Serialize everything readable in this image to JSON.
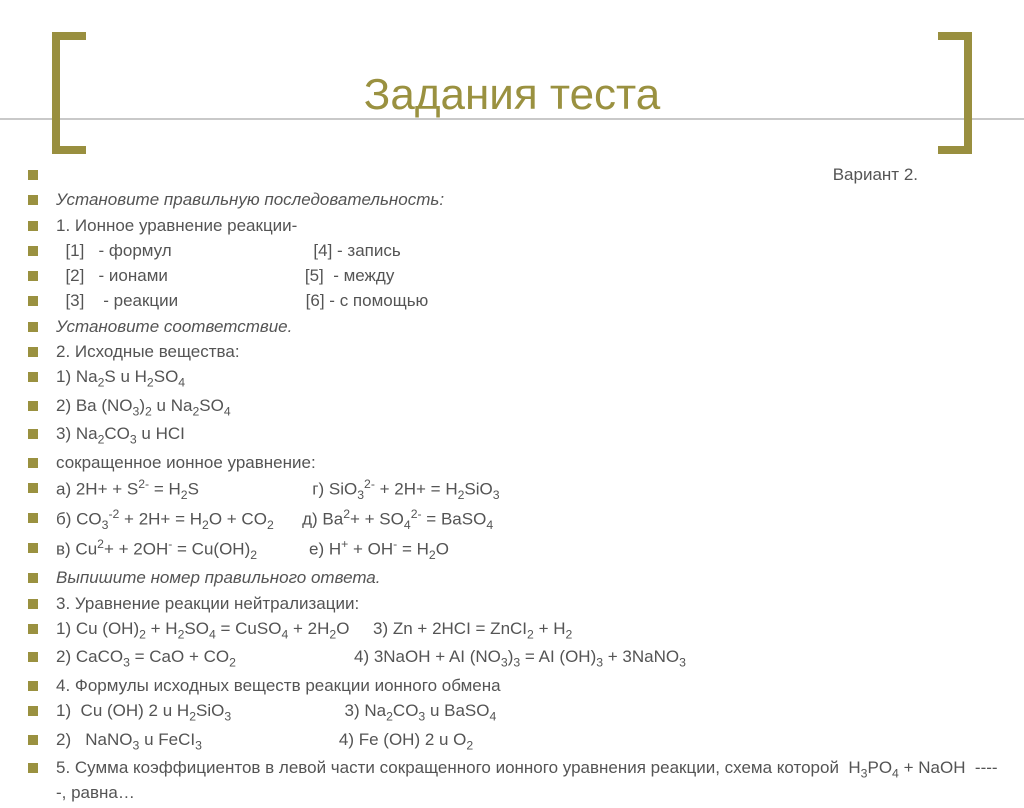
{
  "title": "Задания теста",
  "colors": {
    "accent": "#9a9140",
    "text": "#545454",
    "rule": "#c9c9c9",
    "background": "#ffffff"
  },
  "typography": {
    "title_fontsize": 44,
    "body_fontsize": 17,
    "font_family": "Arial"
  },
  "lines": [
    {
      "html": "Вариант 2.",
      "right": true
    },
    {
      "html": "Установите правильную последовательность:",
      "italic": true
    },
    {
      "html": "1. Ионное уравнение реакции-"
    },
    {
      "html": "&nbsp;&nbsp;[1]&nbsp;&nbsp;&nbsp;- формул&nbsp;&nbsp;&nbsp;&nbsp;&nbsp;&nbsp;&nbsp;&nbsp;&nbsp;&nbsp;&nbsp;&nbsp;&nbsp;&nbsp;&nbsp;&nbsp;&nbsp;&nbsp;&nbsp;&nbsp;&nbsp;&nbsp;&nbsp;&nbsp;&nbsp;&nbsp;&nbsp;&nbsp;&nbsp;&nbsp;[4] - запись"
    },
    {
      "html": "&nbsp;&nbsp;[2]&nbsp;&nbsp;&nbsp;- ионами&nbsp;&nbsp;&nbsp;&nbsp;&nbsp;&nbsp;&nbsp;&nbsp;&nbsp;&nbsp;&nbsp;&nbsp;&nbsp;&nbsp;&nbsp;&nbsp;&nbsp;&nbsp;&nbsp;&nbsp;&nbsp;&nbsp;&nbsp;&nbsp;&nbsp;&nbsp;&nbsp;&nbsp;&nbsp;[5]&nbsp;&nbsp;- между"
    },
    {
      "html": "&nbsp;&nbsp;[3]&nbsp;&nbsp;&nbsp;&nbsp;- реакции&nbsp;&nbsp;&nbsp;&nbsp;&nbsp;&nbsp;&nbsp;&nbsp;&nbsp;&nbsp;&nbsp;&nbsp;&nbsp;&nbsp;&nbsp;&nbsp;&nbsp;&nbsp;&nbsp;&nbsp;&nbsp;&nbsp;&nbsp;&nbsp;&nbsp;&nbsp;&nbsp;[6] - с помощью"
    },
    {
      "html": "Установите соответствие.",
      "italic": true
    },
    {
      "html": "2. Исходные вещества:"
    },
    {
      "html": "1) Na<sub>2</sub>S u H<sub>2</sub>SO<sub>4</sub>"
    },
    {
      "html": "2) Ba (NO<sub>3</sub>)<sub>2</sub> u Na<sub>2</sub>SO<sub>4</sub>"
    },
    {
      "html": "3) Na<sub>2</sub>CO<sub>3</sub> u HCI"
    },
    {
      "html": "сокращенное ионное уравнение:"
    },
    {
      "html": "а) 2H+ + S<sup>2-</sup> = H<sub>2</sub>S&nbsp;&nbsp;&nbsp;&nbsp;&nbsp;&nbsp;&nbsp;&nbsp;&nbsp;&nbsp;&nbsp;&nbsp;&nbsp;&nbsp;&nbsp;&nbsp;&nbsp;&nbsp;&nbsp;&nbsp;&nbsp;&nbsp;&nbsp;&nbsp;г) SiO<sub>3</sub><sup>2-</sup> + 2H+ = H<sub>2</sub>SiO<sub>3</sub>"
    },
    {
      "html": "б) CO<sub>3</sub><sup>-2</sup> + 2H+ = H<sub>2</sub>O + CO<sub>2</sub>&nbsp;&nbsp;&nbsp;&nbsp;&nbsp;&nbsp;д) Ba<sup>2</sup>+ + SO<sub>4</sub><sup>2-</sup> = BaSO<sub>4</sub>"
    },
    {
      "html": "в) Cu<sup>2</sup>+ + 2OH<sup>-</sup> = Cu(OH)<sub>2</sub>&nbsp;&nbsp;&nbsp;&nbsp;&nbsp;&nbsp;&nbsp;&nbsp;&nbsp;&nbsp;&nbsp;е) H<sup>+</sup> + OH<sup>-</sup> = H<sub>2</sub>O"
    },
    {
      "html": "Выпишите номер правильного ответа.",
      "italic": true
    },
    {
      "html": "3. Уравнение реакции нейтрализации:"
    },
    {
      "html": "1) Cu (OH)<sub>2</sub> + H<sub>2</sub>SO<sub>4</sub> = CuSO<sub>4</sub> + 2H<sub>2</sub>O&nbsp;&nbsp;&nbsp;&nbsp;&nbsp;3) Zn + 2HCI = ZnCI<sub>2</sub> + H<sub>2</sub>"
    },
    {
      "html": "2) CaCO<sub>3</sub> = CaO + CO<sub>2</sub>&nbsp;&nbsp;&nbsp;&nbsp;&nbsp;&nbsp;&nbsp;&nbsp;&nbsp;&nbsp;&nbsp;&nbsp;&nbsp;&nbsp;&nbsp;&nbsp;&nbsp;&nbsp;&nbsp;&nbsp;&nbsp;&nbsp;&nbsp;&nbsp;&nbsp;4) 3NaOH + AI (NO<sub>3</sub>)<sub>3</sub> = AI (OH)<sub>3</sub> + 3NaNO<sub>3</sub>"
    },
    {
      "html": "4. Формулы исходных веществ реакции ионного обмена"
    },
    {
      "html": "1)&nbsp;&nbsp;Cu (OH) 2 u H<sub>2</sub>SiO<sub>3</sub>&nbsp;&nbsp;&nbsp;&nbsp;&nbsp;&nbsp;&nbsp;&nbsp;&nbsp;&nbsp;&nbsp;&nbsp;&nbsp;&nbsp;&nbsp;&nbsp;&nbsp;&nbsp;&nbsp;&nbsp;&nbsp;&nbsp;&nbsp;&nbsp;3) Na<sub>2</sub>CO<sub>3</sub> u BaSO<sub>4</sub>"
    },
    {
      "html": "2)&nbsp;&nbsp;&nbsp;NaNO<sub>3</sub> u FeCI<sub>3</sub>&nbsp;&nbsp;&nbsp;&nbsp;&nbsp;&nbsp;&nbsp;&nbsp;&nbsp;&nbsp;&nbsp;&nbsp;&nbsp;&nbsp;&nbsp;&nbsp;&nbsp;&nbsp;&nbsp;&nbsp;&nbsp;&nbsp;&nbsp;&nbsp;&nbsp;&nbsp;&nbsp;&nbsp;&nbsp;4) Fe (OH) 2 u O<sub>2</sub>"
    },
    {
      "html": "5. Сумма коэффициентов в левой части сокращенного ионного уравнения реакции, схема которой&nbsp;&nbsp;H<sub>3</sub>PO<sub>4</sub> + NaOH&nbsp;&nbsp;-----, равна…"
    }
  ]
}
